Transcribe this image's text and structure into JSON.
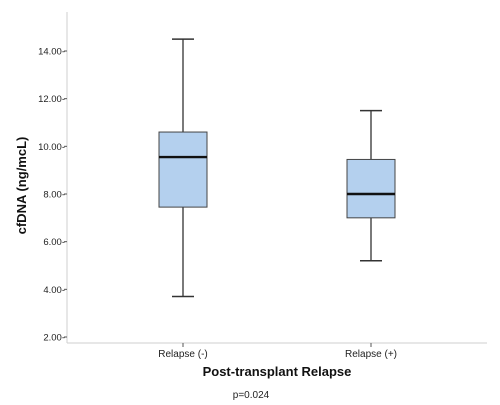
{
  "chart_data": {
    "type": "box",
    "ylabel": "cfDNA (ng/mcL)",
    "xlabel": "Post-transplant Relapse",
    "ylim": [
      2.0,
      15.5
    ],
    "y_ticks": [
      2.0,
      4.0,
      6.0,
      8.0,
      10.0,
      12.0,
      14.0
    ],
    "y_tick_labels": [
      "2.00-",
      "4.00-",
      "6.00-",
      "8.00-",
      "10.00-",
      "12.00-",
      "14.00-"
    ],
    "categories": [
      "Relapse (-)",
      "Relapse (+)"
    ],
    "boxes": [
      {
        "category": "Relapse (-)",
        "min": 3.7,
        "q1": 7.45,
        "median": 9.55,
        "q3": 10.6,
        "max": 14.5
      },
      {
        "category": "Relapse (+)",
        "min": 5.2,
        "q1": 7.0,
        "median": 8.0,
        "q3": 9.45,
        "max": 11.5
      }
    ],
    "annotation": "p=0.024",
    "box_color": "#b4d0ee",
    "grid": false
  }
}
